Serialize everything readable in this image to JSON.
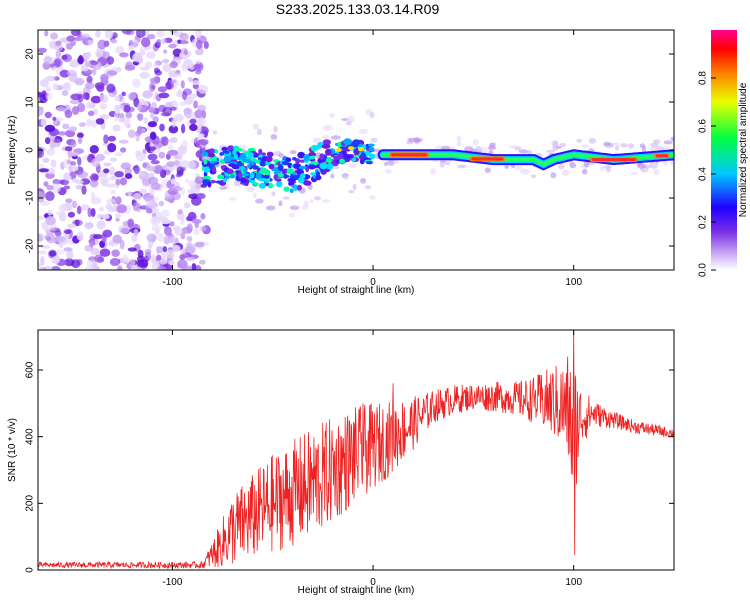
{
  "title": "S233.2025.133.03.14.R09",
  "colors": {
    "snr_line": "#ee2222",
    "speckle": "#a86cf0",
    "ridge_core": "#ff2a2a"
  },
  "chart_data": [
    {
      "type": "heatmap",
      "xlabel": "Height of straight line (km)",
      "ylabel": "Frequency (Hz)",
      "xlim": [
        -167,
        150
      ],
      "ylim": [
        -25,
        25
      ],
      "xticks": [
        -100,
        0,
        100
      ],
      "yticks": [
        -20,
        -10,
        0,
        10,
        20
      ],
      "colorbar": {
        "label": "Normalized spectral amplitude",
        "range": [
          0,
          1
        ],
        "ticks": [
          "0.0",
          "0.2",
          "0.4",
          "0.6",
          "0.8"
        ],
        "placement": "right"
      },
      "ridge": {
        "x": [
          -85,
          -70,
          -55,
          -40,
          -30,
          -20,
          -10,
          0,
          10,
          20,
          40,
          60,
          80,
          85,
          90,
          100,
          120,
          150
        ],
        "y": [
          -4,
          -3,
          -4,
          -5,
          -3,
          -1,
          0,
          -1,
          -1,
          -1,
          -1,
          -2,
          -2,
          -3,
          -2,
          -1,
          -2,
          -1
        ]
      },
      "noise_region_x": [
        -167,
        -85
      ]
    },
    {
      "type": "line",
      "xlabel": "Height of straight line (km)",
      "ylabel": "SNR (10 * v/v)",
      "xlim": [
        -167,
        150
      ],
      "ylim": [
        0,
        720
      ],
      "xticks": [
        -100,
        0,
        100
      ],
      "yticks": [
        0,
        200,
        400,
        600
      ],
      "envelope": {
        "x": [
          -167,
          -85,
          -78,
          -70,
          -60,
          -50,
          -40,
          -30,
          -20,
          -10,
          0,
          10,
          20,
          30,
          40,
          50,
          60,
          70,
          80,
          90,
          97,
          100,
          103,
          110,
          120,
          130,
          140,
          150
        ],
        "baseline": [
          15,
          15,
          60,
          120,
          160,
          200,
          230,
          260,
          300,
          340,
          370,
          400,
          440,
          490,
          510,
          520,
          520,
          515,
          510,
          505,
          480,
          400,
          460,
          470,
          450,
          430,
          420,
          410
        ],
        "spread": [
          8,
          10,
          55,
          110,
          130,
          150,
          160,
          170,
          160,
          150,
          130,
          110,
          80,
          50,
          45,
          40,
          45,
          50,
          70,
          110,
          150,
          250,
          100,
          40,
          25,
          20,
          18,
          15
        ]
      },
      "spikes": [
        {
          "x": 100,
          "y": 720
        },
        {
          "x": 100.5,
          "y": 45
        },
        {
          "x": 97,
          "y": 640
        },
        {
          "x": -5,
          "y": 500
        },
        {
          "x": 10,
          "y": 560
        }
      ]
    }
  ]
}
